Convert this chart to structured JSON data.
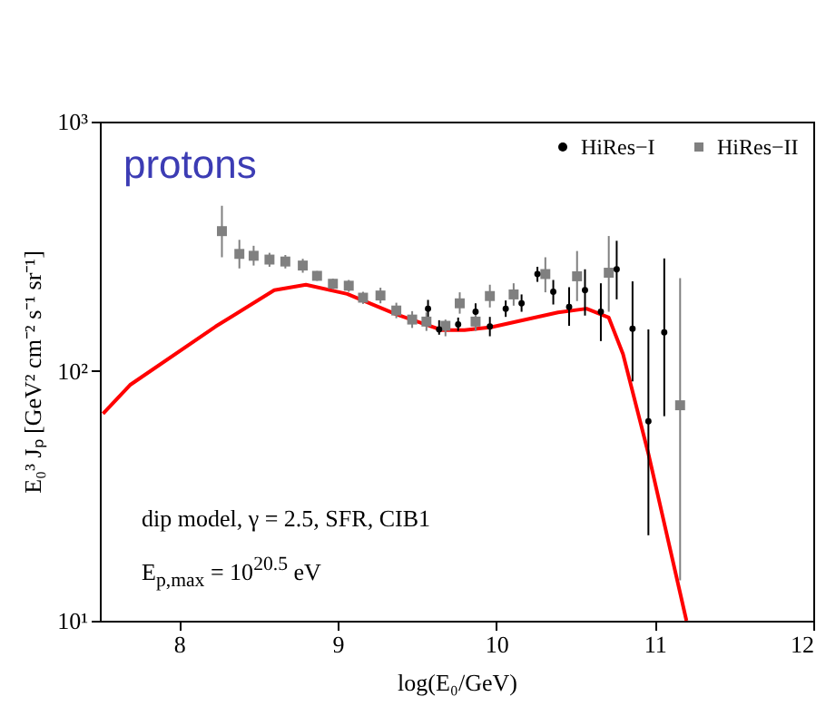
{
  "chart_data": {
    "type": "scatter",
    "xlabel": "log(E₀/GeV)",
    "ylabel": "E₀³ Jₚ [GeV² cm⁻² s⁻¹ sr⁻¹]",
    "annotations": [
      "protons",
      "dip model, γ = 2.5, SFR, CIB1",
      "E$_{p,max}$ = 10$^{20.5}$ eV"
    ],
    "xlim": [
      7.5,
      12
    ],
    "xticks": [
      8,
      9,
      10,
      11,
      12
    ],
    "ylim": [
      10,
      1000
    ],
    "yticks": [
      {
        "value": 10,
        "label": "10¹"
      },
      {
        "value": 100,
        "label": "10²"
      },
      {
        "value": 1000,
        "label": "10³"
      }
    ],
    "log": "y",
    "grid": false,
    "legend": "top right",
    "series": [
      {
        "type": "line",
        "color": "#ff0000",
        "marker": "none",
        "x": [
          7.52,
          7.69,
          8.23,
          8.6,
          8.8,
          9.06,
          9.37,
          9.66,
          9.8,
          9.97,
          10.39,
          10.57,
          10.71,
          10.8,
          10.96,
          11.2
        ],
        "values": [
          67.5,
          88,
          151,
          211,
          222,
          204,
          169,
          146,
          146,
          150,
          172,
          178,
          164,
          117,
          46.7,
          10
        ]
      },
      {
        "name": "HiRes−I",
        "color": "#000000",
        "marker": "circle",
        "x": [
          9.57,
          9.64,
          9.76,
          9.87,
          9.96,
          10.06,
          10.16,
          10.26,
          10.36,
          10.46,
          10.56,
          10.66,
          10.76,
          10.86,
          10.96,
          11.06
        ],
        "values": [
          178,
          147,
          154,
          173,
          151,
          178,
          187,
          245,
          208,
          181,
          211,
          173,
          256,
          148,
          63,
          143
        ],
        "errors": [
          [
            165,
            193
          ],
          [
            140,
            160
          ],
          [
            145,
            164
          ],
          [
            160,
            187
          ],
          [
            138,
            165
          ],
          [
            165,
            192
          ],
          [
            173,
            203
          ],
          [
            228,
            262
          ],
          [
            185,
            232
          ],
          [
            152,
            217
          ],
          [
            167,
            256
          ],
          [
            132,
            225
          ],
          [
            194,
            333
          ],
          [
            91,
            229
          ],
          [
            22,
            147
          ],
          [
            66,
            283
          ]
        ]
      },
      {
        "name": "HiRes−II",
        "color": "#808080",
        "marker": "square",
        "x": [
          8.27,
          8.38,
          8.47,
          8.57,
          8.67,
          8.78,
          8.87,
          8.97,
          9.07,
          9.16,
          9.27,
          9.37,
          9.47,
          9.56,
          9.68,
          9.77,
          9.87,
          9.96,
          10.11,
          10.31,
          10.51,
          10.71,
          11.16
        ],
        "values": [
          364,
          295,
          290,
          280,
          275,
          265,
          241,
          224,
          220,
          197,
          201,
          175,
          161,
          158,
          152,
          187,
          158,
          200,
          203,
          245,
          240,
          248,
          73
        ],
        "errors": [
          [
            286,
            460
          ],
          [
            258,
            336
          ],
          [
            265,
            318
          ],
          [
            262,
            298
          ],
          [
            258,
            292
          ],
          [
            248,
            282
          ],
          [
            230,
            252
          ],
          [
            213,
            235
          ],
          [
            208,
            232
          ],
          [
            186,
            208
          ],
          [
            187,
            216
          ],
          [
            163,
            188
          ],
          [
            149,
            174
          ],
          [
            145,
            172
          ],
          [
            138,
            161
          ],
          [
            170,
            207
          ],
          [
            145,
            172
          ],
          [
            180,
            222
          ],
          [
            183,
            225
          ],
          [
            207,
            286
          ],
          [
            191,
            303
          ],
          [
            173,
            348
          ],
          [
            14.5,
            236
          ]
        ]
      }
    ]
  }
}
